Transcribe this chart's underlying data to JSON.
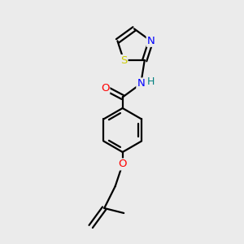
{
  "background_color": "#ebebeb",
  "bond_color": "#000000",
  "atom_colors": {
    "O": "#ff0000",
    "N": "#0000ff",
    "S": "#cccc00",
    "H": "#008080",
    "C": "#000000"
  },
  "figsize": [
    3.0,
    3.0
  ],
  "dpi": 100,
  "lw": 1.6,
  "fontsize": 9.5
}
